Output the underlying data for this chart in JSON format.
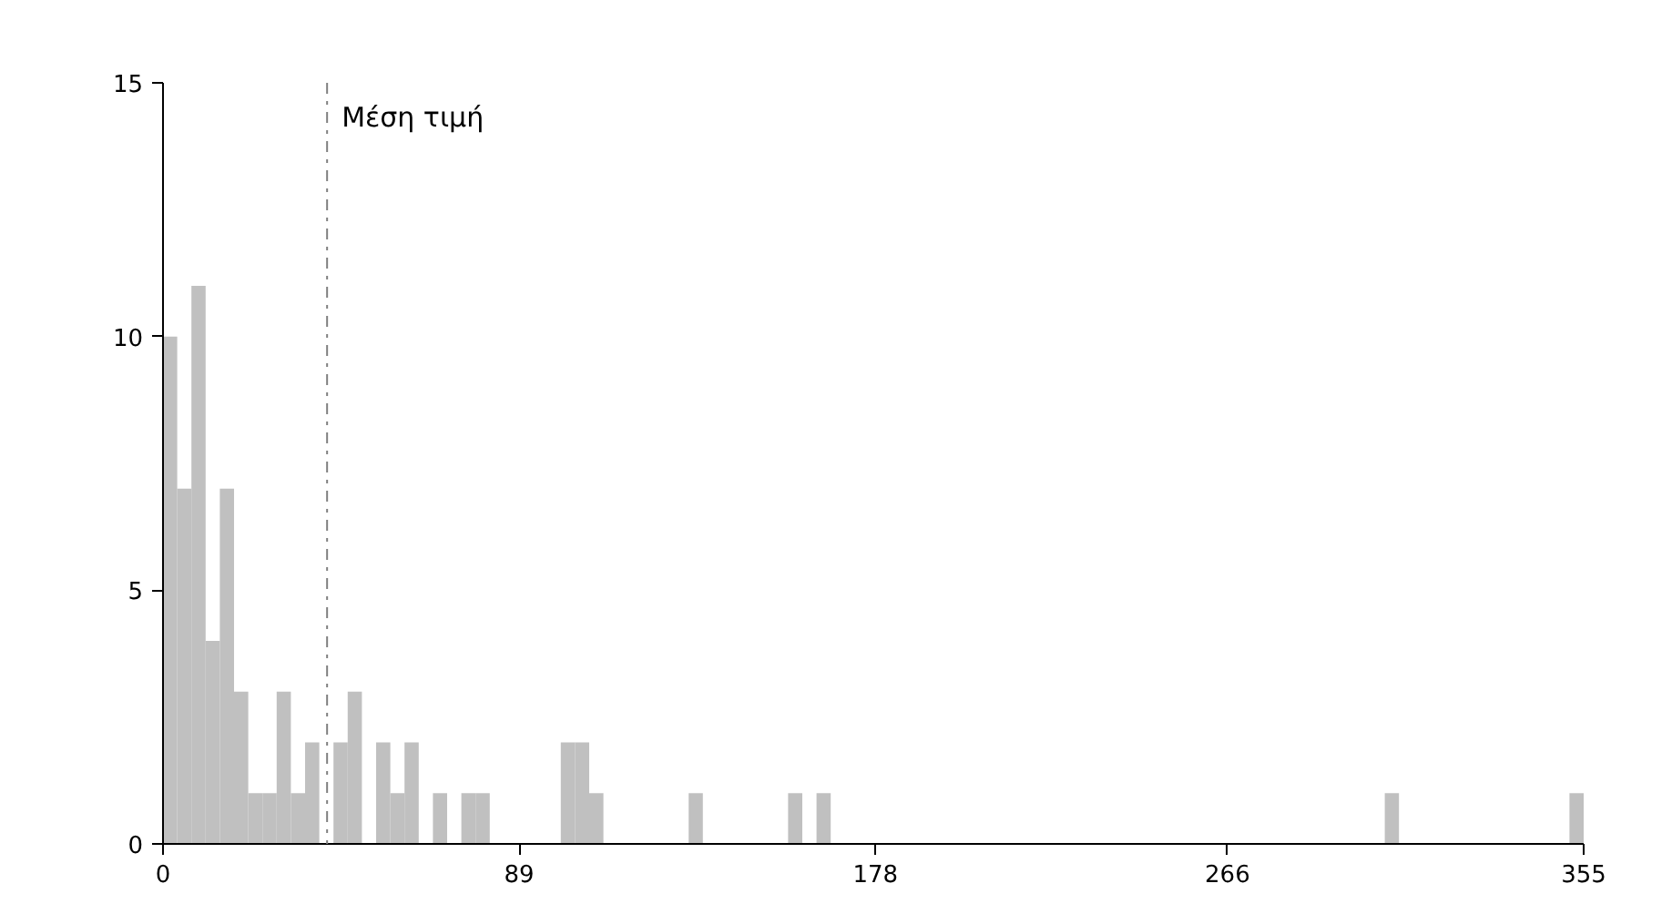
{
  "chart_data": {
    "type": "histogram",
    "bins": [
      0,
      3.55,
      7.1,
      10.65,
      14.2,
      17.75,
      21.3,
      24.85,
      28.4,
      31.95,
      35.5,
      39.05,
      42.6,
      46.15,
      49.7,
      53.25,
      56.8,
      60.35,
      63.9,
      67.45,
      71,
      74.55,
      78.1,
      81.65,
      85.2,
      88.75,
      92.3,
      95.85,
      99.4,
      102.95,
      106.5,
      110.05,
      113.6,
      117.15,
      120.7,
      124.25,
      127.8,
      131.35,
      134.9,
      138.45,
      142,
      145.55,
      149.1,
      152.65,
      156.2,
      159.75,
      163.3,
      166.85,
      170.4,
      173.95,
      177.5,
      181.05,
      184.6,
      188.15,
      191.7,
      195.25,
      198.8,
      202.35,
      205.9,
      209.45,
      213,
      216.55,
      220.1,
      223.65,
      227.2,
      230.75,
      234.3,
      237.85,
      241.4,
      244.95,
      248.5,
      252.05,
      255.6,
      259.15,
      262.7,
      266.25,
      269.8,
      273.35,
      276.9,
      280.45,
      284,
      287.55,
      291.1,
      294.65,
      298.2,
      301.75,
      305.3,
      308.85,
      312.4,
      315.95,
      319.5,
      323.05,
      326.6,
      330.15,
      333.7,
      337.25,
      340.8,
      344.35,
      347.9,
      351.45,
      355
    ],
    "values": [
      10,
      7,
      11,
      4,
      7,
      3,
      1,
      1,
      3,
      1,
      2,
      0,
      2,
      3,
      0,
      2,
      1,
      2,
      0,
      1,
      0,
      1,
      1,
      0,
      0,
      0,
      0,
      0,
      2,
      2,
      1,
      0,
      0,
      0,
      0,
      0,
      0,
      1,
      0,
      0,
      0,
      0,
      0,
      0,
      1,
      0,
      1,
      0,
      0,
      0,
      0,
      0,
      0,
      0,
      0,
      0,
      0,
      0,
      0,
      0,
      0,
      0,
      0,
      0,
      0,
      0,
      0,
      0,
      0,
      0,
      0,
      0,
      0,
      0,
      0,
      0,
      0,
      0,
      0,
      0,
      0,
      0,
      0,
      0,
      0,
      0,
      1,
      0,
      0,
      0,
      0,
      0,
      0,
      0,
      0,
      0,
      0,
      0,
      0,
      1
    ],
    "color": "#c0c0c0",
    "xlim": [
      0,
      355
    ],
    "xticks": [
      0,
      89,
      178,
      266,
      355
    ],
    "ylim": [
      0,
      15
    ],
    "yticks": [
      0,
      5,
      10,
      15
    ],
    "grid": false,
    "ref_lines": [
      {
        "axis": "x",
        "value": 41,
        "label": "Μέση τιμή",
        "color": "#808080",
        "line_style": "dashdot"
      }
    ]
  }
}
